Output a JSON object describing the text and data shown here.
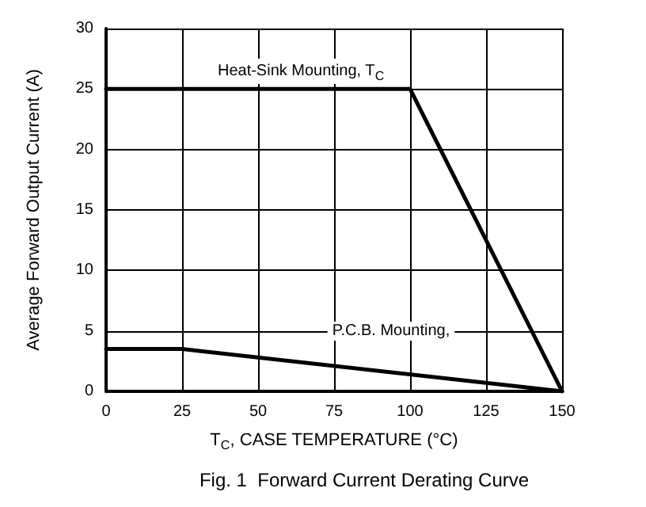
{
  "chart_data": {
    "type": "line",
    "title": "Fig. 1  Forward Current Derating Curve",
    "xlabel": "T$_{C}$, CASE TEMPERATURE (°C)",
    "ylabel": "Average Forward Output Current (A)",
    "series": [
      {
        "name": "Heat-Sink Mounting, T$_{C}$",
        "color": "#000000",
        "x": [
          0,
          100,
          150
        ],
        "values": [
          25,
          25,
          0
        ]
      },
      {
        "name": "P.C.B. Mounting,",
        "color": "#000000",
        "x": [
          0,
          25,
          150
        ],
        "values": [
          3.5,
          3.5,
          0
        ]
      }
    ],
    "xlim": [
      0,
      150
    ],
    "xticks": [
      0,
      25,
      50,
      75,
      100,
      125,
      150
    ],
    "ylim": [
      0,
      30
    ],
    "yticks": [
      0,
      5,
      10,
      15,
      20,
      25,
      30
    ],
    "grid": true,
    "marker": "none",
    "line_style": "solid",
    "legend": false
  }
}
